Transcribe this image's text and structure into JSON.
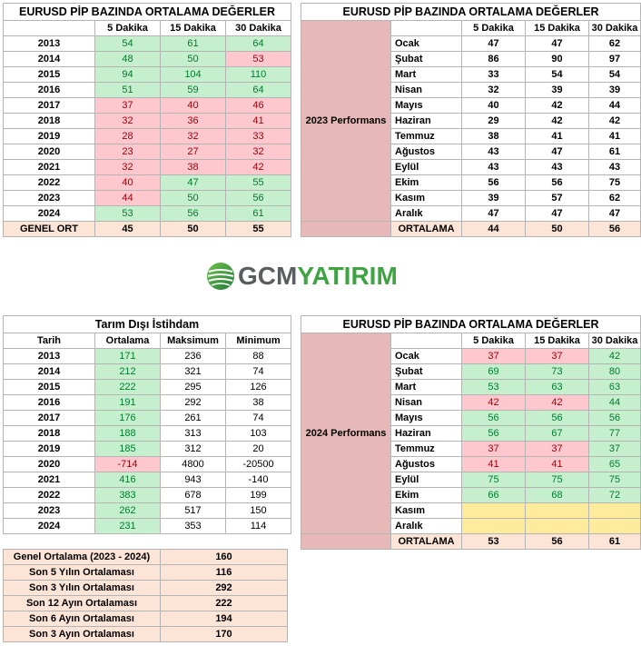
{
  "t1": {
    "title": "EURUSD  PİP BAZINDA ORTALAMA DEĞERLER",
    "headers": [
      "",
      "5 Dakika",
      "15 Dakika",
      "30 Dakika"
    ],
    "rows": [
      {
        "year": "2013",
        "v": [
          "54",
          "61",
          "64"
        ],
        "c": [
          "g",
          "g",
          "g"
        ]
      },
      {
        "year": "2014",
        "v": [
          "48",
          "50",
          "53"
        ],
        "c": [
          "g",
          "g",
          "r"
        ]
      },
      {
        "year": "2015",
        "v": [
          "94",
          "104",
          "110"
        ],
        "c": [
          "g",
          "g",
          "g"
        ]
      },
      {
        "year": "2016",
        "v": [
          "51",
          "59",
          "64"
        ],
        "c": [
          "g",
          "g",
          "g"
        ]
      },
      {
        "year": "2017",
        "v": [
          "37",
          "40",
          "46"
        ],
        "c": [
          "r",
          "r",
          "r"
        ]
      },
      {
        "year": "2018",
        "v": [
          "32",
          "36",
          "41"
        ],
        "c": [
          "r",
          "r",
          "r"
        ]
      },
      {
        "year": "2019",
        "v": [
          "28",
          "32",
          "33"
        ],
        "c": [
          "r",
          "r",
          "r"
        ]
      },
      {
        "year": "2020",
        "v": [
          "23",
          "27",
          "32"
        ],
        "c": [
          "r",
          "r",
          "r"
        ]
      },
      {
        "year": "2021",
        "v": [
          "32",
          "38",
          "42"
        ],
        "c": [
          "r",
          "r",
          "r"
        ]
      },
      {
        "year": "2022",
        "v": [
          "40",
          "47",
          "55"
        ],
        "c": [
          "r",
          "g",
          "g"
        ]
      },
      {
        "year": "2023",
        "v": [
          "44",
          "50",
          "56"
        ],
        "c": [
          "r",
          "g",
          "g"
        ]
      },
      {
        "year": "2024",
        "v": [
          "53",
          "56",
          "61"
        ],
        "c": [
          "g",
          "g",
          "g"
        ]
      }
    ],
    "footer": {
      "label": "GENEL ORT",
      "v": [
        "45",
        "50",
        "55"
      ]
    }
  },
  "t2": {
    "title": "EURUSD  PİP BAZINDA ORTALAMA DEĞERLER",
    "headers": [
      "5 Dakika",
      "15 Dakika",
      "30 Dakika"
    ],
    "side_label": "2023 Performans",
    "rows": [
      {
        "m": "Ocak",
        "v": [
          "47",
          "47",
          "62"
        ]
      },
      {
        "m": "Şubat",
        "v": [
          "86",
          "90",
          "97"
        ]
      },
      {
        "m": "Mart",
        "v": [
          "33",
          "54",
          "54"
        ]
      },
      {
        "m": "Nisan",
        "v": [
          "32",
          "39",
          "39"
        ]
      },
      {
        "m": "Mayıs",
        "v": [
          "40",
          "42",
          "44"
        ]
      },
      {
        "m": "Haziran",
        "v": [
          "29",
          "42",
          "42"
        ]
      },
      {
        "m": "Temmuz",
        "v": [
          "38",
          "41",
          "41"
        ]
      },
      {
        "m": "Ağustos",
        "v": [
          "43",
          "47",
          "61"
        ]
      },
      {
        "m": "Eylül",
        "v": [
          "43",
          "43",
          "43"
        ]
      },
      {
        "m": "Ekim",
        "v": [
          "56",
          "56",
          "75"
        ]
      },
      {
        "m": "Kasım",
        "v": [
          "39",
          "57",
          "62"
        ]
      },
      {
        "m": "Aralık",
        "v": [
          "47",
          "47",
          "47"
        ]
      }
    ],
    "footer": {
      "label": "ORTALAMA",
      "v": [
        "44",
        "50",
        "56"
      ]
    }
  },
  "logo": {
    "part1": "GCM",
    "part2": "YATIRIM",
    "colors": {
      "gray": "#5b5e61",
      "green": "#3ea341"
    }
  },
  "t3": {
    "title": "Tarım Dışı İstihdam",
    "headers": [
      "Tarih",
      "Ortalama",
      "Maksimum",
      "Minimum"
    ],
    "rows": [
      {
        "year": "2013",
        "avg": "171",
        "c": "g",
        "max": "236",
        "min": "88"
      },
      {
        "year": "2014",
        "avg": "212",
        "c": "g",
        "max": "321",
        "min": "74"
      },
      {
        "year": "2015",
        "avg": "222",
        "c": "g",
        "max": "295",
        "min": "126"
      },
      {
        "year": "2016",
        "avg": "191",
        "c": "g",
        "max": "292",
        "min": "38"
      },
      {
        "year": "2017",
        "avg": "176",
        "c": "g",
        "max": "261",
        "min": "74"
      },
      {
        "year": "2018",
        "avg": "188",
        "c": "g",
        "max": "313",
        "min": "103"
      },
      {
        "year": "2019",
        "avg": "185",
        "c": "g",
        "max": "312",
        "min": "20"
      },
      {
        "year": "2020",
        "avg": "-714",
        "c": "r",
        "max": "4800",
        "min": "-20500"
      },
      {
        "year": "2021",
        "avg": "416",
        "c": "g",
        "max": "943",
        "min": "-140"
      },
      {
        "year": "2022",
        "avg": "383",
        "c": "g",
        "max": "678",
        "min": "199"
      },
      {
        "year": "2023",
        "avg": "262",
        "c": "g",
        "max": "517",
        "min": "150"
      },
      {
        "year": "2024",
        "avg": "231",
        "c": "g",
        "max": "353",
        "min": "114"
      }
    ]
  },
  "t4": {
    "title": "EURUSD  PİP BAZINDA ORTALAMA DEĞERLER",
    "headers": [
      "5 Dakika",
      "15 Dakika",
      "30 Dakika"
    ],
    "side_label": "2024 Performans",
    "rows": [
      {
        "m": "Ocak",
        "v": [
          "37",
          "37",
          "42"
        ],
        "c": [
          "r",
          "r",
          "g"
        ]
      },
      {
        "m": "Şubat",
        "v": [
          "69",
          "73",
          "80"
        ],
        "c": [
          "g",
          "g",
          "g"
        ]
      },
      {
        "m": "Mart",
        "v": [
          "53",
          "63",
          "63"
        ],
        "c": [
          "g",
          "g",
          "g"
        ]
      },
      {
        "m": "Nisan",
        "v": [
          "42",
          "42",
          "44"
        ],
        "c": [
          "r",
          "r",
          "g"
        ]
      },
      {
        "m": "Mayıs",
        "v": [
          "56",
          "56",
          "56"
        ],
        "c": [
          "g",
          "g",
          "g"
        ]
      },
      {
        "m": "Haziran",
        "v": [
          "56",
          "67",
          "77"
        ],
        "c": [
          "g",
          "g",
          "g"
        ]
      },
      {
        "m": "Temmuz",
        "v": [
          "37",
          "37",
          "37"
        ],
        "c": [
          "r",
          "r",
          "g"
        ]
      },
      {
        "m": "Ağustos",
        "v": [
          "41",
          "41",
          "65"
        ],
        "c": [
          "r",
          "r",
          "g"
        ]
      },
      {
        "m": "Eylül",
        "v": [
          "75",
          "75",
          "75"
        ],
        "c": [
          "g",
          "g",
          "g"
        ]
      },
      {
        "m": "Ekim",
        "v": [
          "66",
          "68",
          "72"
        ],
        "c": [
          "g",
          "g",
          "g"
        ]
      },
      {
        "m": "Kasım",
        "v": [
          "",
          "",
          ""
        ],
        "c": [
          "y",
          "y",
          "y"
        ]
      },
      {
        "m": "Aralık",
        "v": [
          "",
          "",
          ""
        ],
        "c": [
          "y",
          "y",
          "y"
        ]
      }
    ],
    "footer": {
      "label": "ORTALAMA",
      "v": [
        "53",
        "56",
        "61"
      ]
    }
  },
  "t5": {
    "rows": [
      {
        "label": "Genel Ortalama (2023 - 2024)",
        "v": "160"
      },
      {
        "label": "Son 5 Yılın Ortalaması",
        "v": "116"
      },
      {
        "label": "Son 3 Yılın Ortalaması",
        "v": "292"
      },
      {
        "label": "Son 12 Ayın Ortalaması",
        "v": "222"
      },
      {
        "label": "Son 6 Ayın Ortalaması",
        "v": "194"
      },
      {
        "label": "Son 3 Ayın Ortalaması",
        "v": "170"
      }
    ]
  }
}
